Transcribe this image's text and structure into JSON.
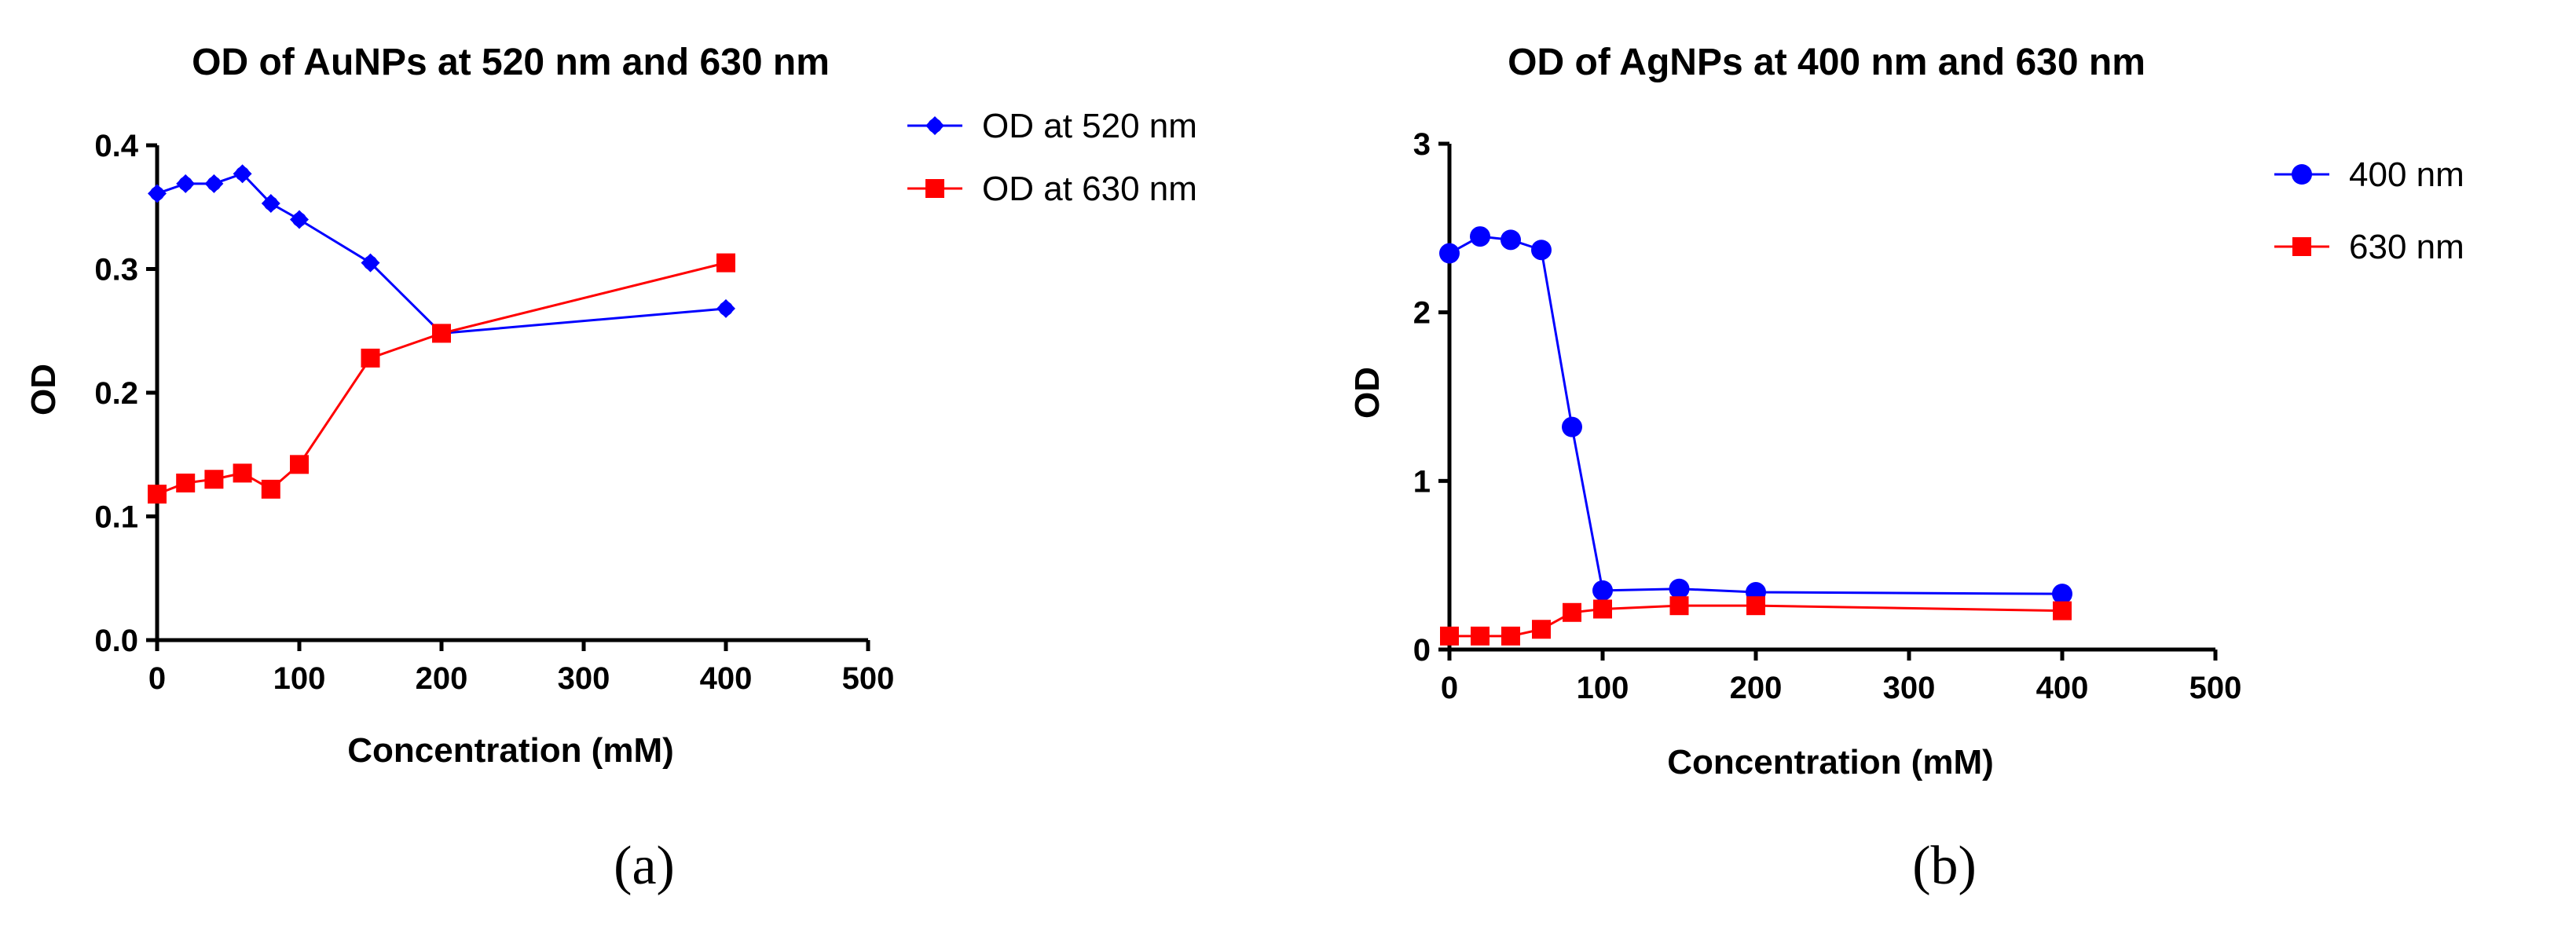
{
  "chart_data": [
    {
      "type": "line",
      "panel_label": "(a)",
      "title": "OD of AuNPs at 520 nm and 630 nm",
      "xlabel": "Concentration (mM)",
      "ylabel": "OD",
      "xlim": [
        0,
        500
      ],
      "ylim": [
        0,
        0.4
      ],
      "xticks": [
        "0",
        "100",
        "200",
        "300",
        "400",
        "500"
      ],
      "yticks": [
        "0.0",
        "0.1",
        "0.2",
        "0.3",
        "0.4"
      ],
      "legend_position": "right",
      "series": [
        {
          "name": "OD at 520 nm",
          "color": "#0000FF",
          "marker": "diamond",
          "x": [
            0,
            20,
            40,
            60,
            80,
            100,
            150,
            200,
            400
          ],
          "values": [
            0.361,
            0.369,
            0.369,
            0.377,
            0.353,
            0.34,
            0.305,
            0.248,
            0.268
          ]
        },
        {
          "name": "OD at 630 nm",
          "color": "#FF0000",
          "marker": "square",
          "x": [
            0,
            20,
            40,
            60,
            80,
            100,
            150,
            200,
            400
          ],
          "values": [
            0.118,
            0.127,
            0.13,
            0.135,
            0.122,
            0.142,
            0.228,
            0.248,
            0.305
          ]
        }
      ]
    },
    {
      "type": "line",
      "panel_label": "(b)",
      "title": "OD of AgNPs at 400 nm and 630 nm",
      "xlabel": "Concentration (mM)",
      "ylabel": "OD",
      "xlim": [
        0,
        500
      ],
      "ylim": [
        0,
        3
      ],
      "xticks": [
        "0",
        "100",
        "200",
        "300",
        "400",
        "500"
      ],
      "yticks": [
        "0",
        "1",
        "2",
        "3"
      ],
      "legend_position": "right",
      "series": [
        {
          "name": "400 nm",
          "color": "#0000FF",
          "marker": "circle",
          "x": [
            0,
            20,
            40,
            60,
            80,
            100,
            150,
            200,
            400
          ],
          "values": [
            2.35,
            2.45,
            2.43,
            2.37,
            1.32,
            0.35,
            0.36,
            0.34,
            0.33
          ]
        },
        {
          "name": "630 nm",
          "color": "#FF0000",
          "marker": "square",
          "x": [
            0,
            20,
            40,
            60,
            80,
            100,
            150,
            200,
            400
          ],
          "values": [
            0.08,
            0.08,
            0.08,
            0.12,
            0.22,
            0.24,
            0.26,
            0.26,
            0.23
          ]
        }
      ]
    }
  ]
}
